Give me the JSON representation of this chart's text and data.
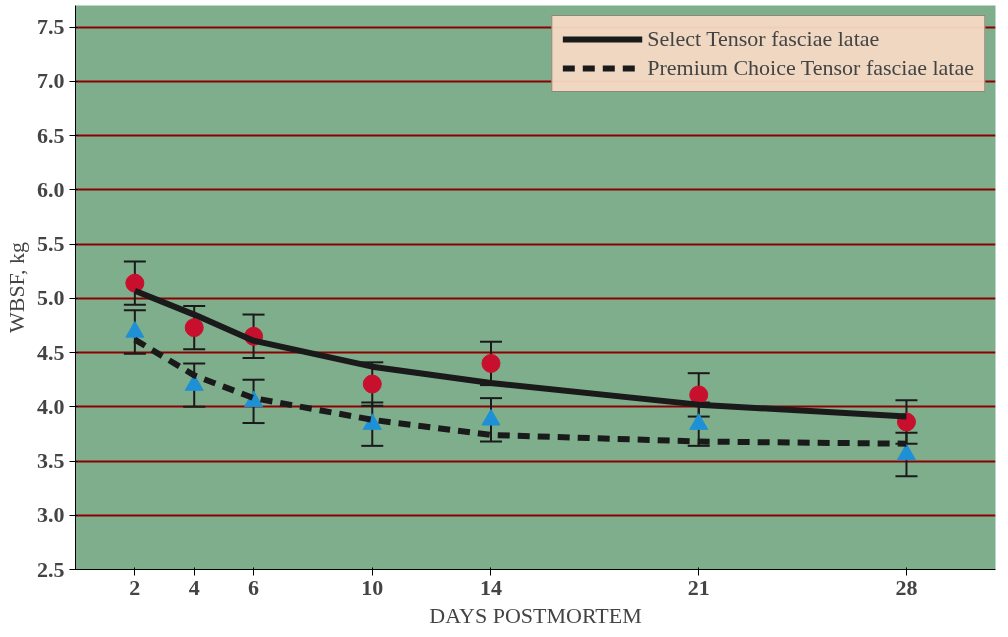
{
  "chart_data": {
    "type": "line",
    "xlabel": "DAYS POSTMORTEM",
    "ylabel": "WBSF, kg",
    "xlim": [
      0,
      31
    ],
    "xticks": [
      2,
      4,
      6,
      10,
      14,
      21,
      28
    ],
    "ylim": [
      2.5,
      7.7
    ],
    "yticks": [
      2.5,
      {
        "value": 3,
        "label": "3.0"
      },
      3.5,
      {
        "value": 4,
        "label": "4.0"
      },
      4.5,
      {
        "value": 5,
        "label": "5.0"
      },
      5.5,
      {
        "value": 6,
        "label": "6.0"
      },
      6.5,
      {
        "value": 7,
        "label": "7.0"
      },
      7.5
    ],
    "grid": "y",
    "legend": "top right",
    "series": [
      {
        "name": "Select Tensor fasciae latae",
        "color": "#1a1a1a",
        "line_style": "solid",
        "marker": "none",
        "x": [
          2,
          4,
          6,
          10,
          14,
          21,
          28
        ],
        "values": [
          5.07,
          4.85,
          4.61,
          4.37,
          4.22,
          4.02,
          3.91
        ]
      },
      {
        "name": "Premium Choice Tensor fasciae latae",
        "color": "#1a1a1a",
        "line_style": "dashed",
        "marker": "none",
        "x": [
          2,
          4,
          6,
          10,
          14,
          21,
          28
        ],
        "values": [
          4.62,
          4.29,
          4.08,
          3.88,
          3.74,
          3.68,
          3.66
        ]
      },
      {
        "type": "scatter",
        "color": "#c8102e",
        "marker": "circle",
        "x": [
          2,
          4,
          6,
          10,
          14,
          21,
          28
        ],
        "values": [
          5.14,
          4.73,
          4.65,
          4.21,
          4.4,
          4.11,
          3.86
        ],
        "errors": [
          0.2,
          0.2,
          0.2,
          0.2,
          0.2,
          0.2,
          0.2
        ]
      },
      {
        "type": "scatter",
        "color": "#1e90d6",
        "marker": "triangle",
        "x": [
          2,
          4,
          6,
          10,
          14,
          21,
          28
        ],
        "values": [
          4.69,
          4.2,
          4.05,
          3.84,
          3.88,
          3.84,
          3.56
        ],
        "errors": [
          0.2,
          0.2,
          0.2,
          0.2,
          0.2,
          0.2,
          0.2
        ]
      }
    ]
  }
}
